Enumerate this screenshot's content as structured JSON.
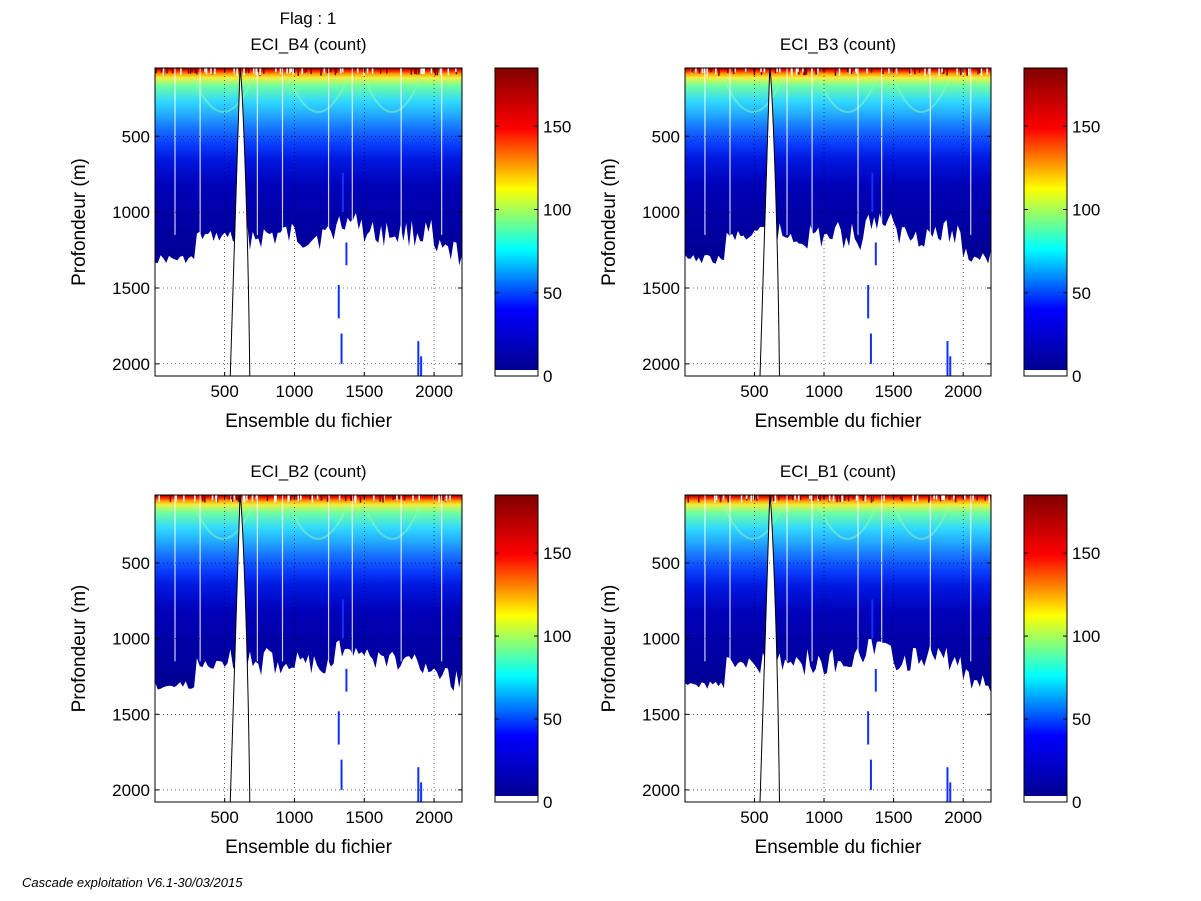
{
  "figure": {
    "suptitle": "Flag : 1",
    "footer": "Cascade exploitation V6.1-30/03/2015"
  },
  "colormap": {
    "name": "jet",
    "stops": [
      "#00008f",
      "#0000ff",
      "#00ffff",
      "#ffff00",
      "#ff0000",
      "#800000"
    ]
  },
  "chart_data": [
    {
      "type": "heatmap",
      "title": "ECI_B4 (count)",
      "xlabel": "Ensemble du fichier",
      "ylabel": "Profondeur (m)",
      "xlim": [
        1,
        2200
      ],
      "ylim": [
        2080,
        50
      ],
      "xticks": [
        500,
        1000,
        1500,
        2000
      ],
      "yticks": [
        500,
        1000,
        1500,
        2000
      ],
      "grid": true,
      "colorbar": {
        "min": 0,
        "max": 185,
        "ticks": [
          0,
          50,
          100,
          150
        ]
      },
      "gap_x": [
        540,
        680
      ]
    },
    {
      "type": "heatmap",
      "title": "ECI_B3 (count)",
      "xlabel": "Ensemble du fichier",
      "ylabel": "Profondeur (m)",
      "xlim": [
        1,
        2200
      ],
      "ylim": [
        2080,
        50
      ],
      "xticks": [
        500,
        1000,
        1500,
        2000
      ],
      "yticks": [
        500,
        1000,
        1500,
        2000
      ],
      "grid": true,
      "colorbar": {
        "min": 0,
        "max": 185,
        "ticks": [
          0,
          50,
          100,
          150
        ]
      },
      "gap_x": [
        540,
        680
      ]
    },
    {
      "type": "heatmap",
      "title": "ECI_B2 (count)",
      "xlabel": "Ensemble du fichier",
      "ylabel": "Profondeur (m)",
      "xlim": [
        1,
        2200
      ],
      "ylim": [
        2080,
        50
      ],
      "xticks": [
        500,
        1000,
        1500,
        2000
      ],
      "yticks": [
        500,
        1000,
        1500,
        2000
      ],
      "grid": true,
      "colorbar": {
        "min": 0,
        "max": 185,
        "ticks": [
          0,
          50,
          100,
          150
        ]
      },
      "gap_x": [
        540,
        680
      ]
    },
    {
      "type": "heatmap",
      "title": "ECI_B1 (count)",
      "xlabel": "Ensemble du fichier",
      "ylabel": "Profondeur (m)",
      "xlim": [
        1,
        2200
      ],
      "ylim": [
        2080,
        50
      ],
      "xticks": [
        500,
        1000,
        1500,
        2000
      ],
      "yticks": [
        500,
        1000,
        1500,
        2000
      ],
      "grid": true,
      "colorbar": {
        "min": 0,
        "max": 185,
        "ticks": [
          0,
          50,
          100,
          150
        ]
      },
      "gap_x": [
        540,
        680
      ]
    }
  ]
}
